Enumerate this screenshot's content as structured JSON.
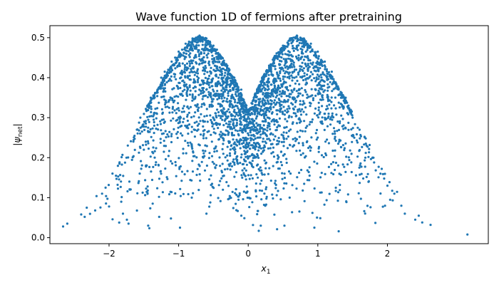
{
  "chart_data": {
    "type": "scatter",
    "title": "Wave function 1D of fermions after pretraining",
    "xlabel_main": "x",
    "xlabel_sub": "1",
    "ylabel_main": "|ψ",
    "ylabel_sub": "net",
    "ylabel_end": "|",
    "xlim": [
      -2.85,
      3.45
    ],
    "ylim": [
      -0.015,
      0.53
    ],
    "xticks": [
      -2,
      -1,
      0,
      1,
      2
    ],
    "xtick_labels": [
      "−2",
      "−1",
      "0",
      "1",
      "2"
    ],
    "yticks": [
      0.0,
      0.1,
      0.2,
      0.3,
      0.4,
      0.5
    ],
    "ytick_labels": [
      "0.0",
      "0.1",
      "0.2",
      "0.3",
      "0.4",
      "0.5"
    ],
    "grid": false,
    "point_color": "#1f77b4",
    "description_of_distribution": "",
    "envelope": {
      "x": [
        -2.66,
        -2.4,
        -2.2,
        -2.0,
        -1.8,
        -1.6,
        -1.4,
        -1.2,
        -1.0,
        -0.8,
        -0.7,
        -0.6,
        -0.4,
        -0.2,
        0.0,
        0.2,
        0.4,
        0.6,
        0.7,
        0.8,
        1.0,
        1.2,
        1.4,
        1.6,
        1.8,
        2.0,
        2.2,
        2.4,
        2.62
      ],
      "y": [
        0.03,
        0.06,
        0.1,
        0.155,
        0.215,
        0.28,
        0.345,
        0.405,
        0.458,
        0.497,
        0.505,
        0.498,
        0.46,
        0.4,
        0.32,
        0.4,
        0.46,
        0.498,
        0.505,
        0.497,
        0.458,
        0.405,
        0.345,
        0.28,
        0.215,
        0.155,
        0.1,
        0.06,
        0.03
      ]
    },
    "points": [
      [
        -2.66,
        0.028
      ],
      [
        -2.6,
        0.035
      ],
      [
        -2.4,
        0.058
      ],
      [
        -2.35,
        0.052
      ],
      [
        -2.32,
        0.075
      ],
      [
        -2.2,
        0.068
      ],
      [
        -2.18,
        0.104
      ],
      [
        -2.1,
        0.11
      ],
      [
        -2.05,
        0.125
      ],
      [
        -2.0,
        0.078
      ],
      [
        -1.95,
        0.046
      ],
      [
        -1.9,
        0.155
      ],
      [
        -1.85,
        0.185
      ],
      [
        -1.8,
        0.06
      ],
      [
        -1.75,
        0.2
      ],
      [
        -1.72,
        0.035
      ],
      [
        -1.7,
        0.12
      ],
      [
        -1.65,
        0.24
      ],
      [
        -1.6,
        0.27
      ],
      [
        -1.55,
        0.3
      ],
      [
        -1.5,
        0.22
      ],
      [
        -1.45,
        0.33
      ],
      [
        -1.4,
        0.35
      ],
      [
        -1.35,
        0.28
      ],
      [
        -1.3,
        0.37
      ],
      [
        -1.28,
        0.052
      ],
      [
        -1.25,
        0.4
      ],
      [
        -1.2,
        0.415
      ],
      [
        -1.15,
        0.42
      ],
      [
        -1.1,
        0.44
      ],
      [
        -1.05,
        0.45
      ],
      [
        -1.0,
        0.465
      ],
      [
        -0.98,
        0.025
      ],
      [
        -0.95,
        0.47
      ],
      [
        -0.9,
        0.485
      ],
      [
        -0.85,
        0.49
      ],
      [
        -0.8,
        0.498
      ],
      [
        -0.75,
        0.5
      ],
      [
        -0.7,
        0.505
      ],
      [
        -0.65,
        0.5
      ],
      [
        -0.6,
        0.498
      ],
      [
        -0.55,
        0.49
      ],
      [
        -0.5,
        0.48
      ],
      [
        -0.45,
        0.47
      ],
      [
        -0.4,
        0.455
      ],
      [
        -0.3,
        0.43
      ],
      [
        -0.2,
        0.4
      ],
      [
        -0.1,
        0.37
      ],
      [
        0.0,
        0.32
      ],
      [
        0.1,
        0.36
      ],
      [
        0.2,
        0.4
      ],
      [
        0.3,
        0.43
      ],
      [
        0.4,
        0.455
      ],
      [
        0.5,
        0.48
      ],
      [
        0.6,
        0.498
      ],
      [
        0.65,
        0.5
      ],
      [
        0.7,
        0.505
      ],
      [
        0.75,
        0.5
      ],
      [
        0.8,
        0.498
      ],
      [
        0.9,
        0.485
      ],
      [
        1.0,
        0.465
      ],
      [
        1.1,
        0.44
      ],
      [
        1.2,
        0.415
      ],
      [
        1.3,
        0.37
      ],
      [
        1.4,
        0.35
      ],
      [
        1.5,
        0.3
      ],
      [
        1.6,
        0.27
      ],
      [
        1.7,
        0.23
      ],
      [
        1.8,
        0.2
      ],
      [
        1.9,
        0.16
      ],
      [
        2.0,
        0.13
      ],
      [
        2.1,
        0.11
      ],
      [
        2.2,
        0.08
      ],
      [
        2.25,
        0.06
      ],
      [
        2.4,
        0.045
      ],
      [
        2.45,
        0.055
      ],
      [
        2.5,
        0.038
      ],
      [
        2.62,
        0.032
      ],
      [
        3.15,
        0.008
      ],
      [
        1.3,
        0.016
      ],
      [
        0.52,
        0.03
      ],
      [
        0.18,
        0.03
      ],
      [
        -0.1,
        0.055
      ],
      [
        -0.6,
        0.06
      ],
      [
        0.95,
        0.025
      ]
    ]
  }
}
